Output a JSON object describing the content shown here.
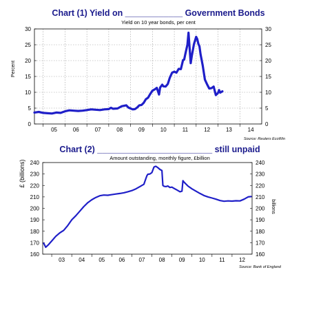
{
  "chart_data": [
    {
      "type": "line",
      "title": "Chart (1) Yield on ____________ Government Bonds",
      "subtitle": "Yield on 10 year bonds, per cent",
      "ylabel": "Percent",
      "source": "Source: Reuters EcoWin",
      "ylim": [
        0,
        30
      ],
      "y_ticks": [
        "0",
        "5",
        "10",
        "15",
        "20",
        "25",
        "30"
      ],
      "x_ticks": [
        "05",
        "06",
        "07",
        "08",
        "09",
        "10",
        "11",
        "12",
        "13",
        "14"
      ],
      "xlim": [
        2004.6,
        2015.0
      ],
      "grid": true,
      "line_color": "#1f1fc8",
      "series": [
        {
          "x": [
            2004.6,
            2004.8,
            2005.0,
            2005.2,
            2005.4,
            2005.6,
            2005.8,
            2006.0,
            2006.2,
            2006.4,
            2006.6,
            2006.8,
            2007.0,
            2007.2,
            2007.4,
            2007.6,
            2007.8,
            2008.0,
            2008.1,
            2008.2,
            2008.4,
            2008.6,
            2008.8,
            2008.9,
            2009.0,
            2009.1,
            2009.2,
            2009.3,
            2009.4,
            2009.5,
            2009.6,
            2009.7,
            2009.8,
            2009.9,
            2010.0,
            2010.1,
            2010.2,
            2010.3,
            2010.35,
            2010.45,
            2010.5,
            2010.6,
            2010.7,
            2010.8,
            2010.9,
            2011.0,
            2011.1,
            2011.2,
            2011.3,
            2011.4,
            2011.45,
            2011.5,
            2011.6,
            2011.65,
            2011.7,
            2011.75,
            2011.8,
            2011.9,
            2012.0,
            2012.05,
            2012.1,
            2012.15,
            2012.2,
            2012.3,
            2012.4,
            2012.5,
            2012.6,
            2012.7,
            2012.8,
            2012.9,
            2013.0,
            2013.05,
            2013.1,
            2013.2
          ],
          "y": [
            3.6,
            3.8,
            3.5,
            3.4,
            3.3,
            3.6,
            3.5,
            4.0,
            4.3,
            4.2,
            4.1,
            4.2,
            4.4,
            4.6,
            4.5,
            4.4,
            4.6,
            4.7,
            5.1,
            4.8,
            4.9,
            5.6,
            5.9,
            5.2,
            4.9,
            4.6,
            4.7,
            5.2,
            5.9,
            6.0,
            6.7,
            7.8,
            8.3,
            9.5,
            10.5,
            10.9,
            11.4,
            9.3,
            11.5,
            12.4,
            11.9,
            11.8,
            12.6,
            14.7,
            16.2,
            16.5,
            16.2,
            17.4,
            17.3,
            20.2,
            20.3,
            21.9,
            25.0,
            28.8,
            24.0,
            19.2,
            21.5,
            25.2,
            27.5,
            26.8,
            25.3,
            24.5,
            22.0,
            18.5,
            14.0,
            12.5,
            11.2,
            11.3,
            11.8,
            9.1,
            9.8,
            10.7,
            9.9,
            10.3
          ]
        }
      ]
    },
    {
      "type": "line",
      "title": "Chart (2) ________________________ still unpaid",
      "subtitle": "Amount outstanding, monthly figure, £billion",
      "ylabel": "£ (billions)",
      "ylabel_right": "billions",
      "source": "Source: Bank of England",
      "ylim": [
        160,
        240
      ],
      "y_ticks": [
        "160",
        "170",
        "180",
        "190",
        "200",
        "210",
        "220",
        "230",
        "240"
      ],
      "x_ticks": [
        "03",
        "04",
        "05",
        "06",
        "07",
        "08",
        "09",
        "10",
        "11",
        "12"
      ],
      "xlim": [
        2002.55,
        2013.0
      ],
      "grid": false,
      "line_color": "#1f1fc8",
      "series": [
        {
          "x": [
            2002.6,
            2002.7,
            2002.85,
            2003.0,
            2003.2,
            2003.4,
            2003.6,
            2003.8,
            2004.0,
            2004.2,
            2004.4,
            2004.6,
            2004.8,
            2005.0,
            2005.2,
            2005.4,
            2005.6,
            2005.8,
            2006.0,
            2006.2,
            2006.4,
            2006.6,
            2006.8,
            2007.0,
            2007.2,
            2007.4,
            2007.6,
            2007.7,
            2007.75,
            2007.8,
            2007.9,
            2008.0,
            2008.1,
            2008.15,
            2008.2,
            2008.3,
            2008.4,
            2008.5,
            2008.55,
            2008.6,
            2008.7,
            2008.8,
            2008.9,
            2009.0,
            2009.1,
            2009.2,
            2009.3,
            2009.4,
            2009.5,
            2009.55,
            2009.6,
            2009.8,
            2010.0,
            2010.2,
            2010.4,
            2010.6,
            2010.8,
            2011.0,
            2011.2,
            2011.4,
            2011.6,
            2011.8,
            2012.0,
            2012.2,
            2012.4,
            2012.6,
            2012.8,
            2012.95
          ],
          "y": [
            169.5,
            166.0,
            168.5,
            171.5,
            175.5,
            178.5,
            180.8,
            185.0,
            190.0,
            193.5,
            197.5,
            201.5,
            205.0,
            207.5,
            209.5,
            211.0,
            211.6,
            211.4,
            212.0,
            212.5,
            213.0,
            213.6,
            214.5,
            215.5,
            217.0,
            219.0,
            221.0,
            226.0,
            228.5,
            229.8,
            230.0,
            231.2,
            236.0,
            236.5,
            236.7,
            235.5,
            234.0,
            233.0,
            220.0,
            219.3,
            219.0,
            219.5,
            218.2,
            218.5,
            217.5,
            216.5,
            215.5,
            214.5,
            215.0,
            224.2,
            223.0,
            219.5,
            217.0,
            215.0,
            213.0,
            211.2,
            210.0,
            209.0,
            208.0,
            206.8,
            206.2,
            206.5,
            206.3,
            206.6,
            206.5,
            208.0,
            210.0,
            210.3
          ]
        }
      ]
    }
  ]
}
